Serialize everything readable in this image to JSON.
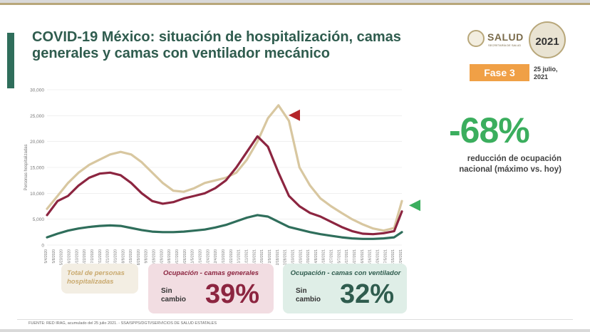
{
  "header": {
    "title": "COVID-19 México: situación de hospitalización, camas generales y camas con ventilador mecánico",
    "logo_text": "SALUD",
    "logo_subtext": "SECRETARÍA DE SALUD",
    "logo_year": "2021",
    "phase": "Fase 3",
    "date": "25 julio, 2021"
  },
  "kpi": {
    "value": "-68%",
    "description": "reducción de ocupación nacional (máximo vs. hoy)"
  },
  "cards": {
    "total": {
      "label": "Total de personas hospitalizadas"
    },
    "general": {
      "label": "Ocupación - camas generales",
      "status": "Sin cambio",
      "value": "39%"
    },
    "ventilator": {
      "label": "Ocupación - camas con ventilador",
      "status": "Sin cambio",
      "value": "32%"
    }
  },
  "footer": "FUENTE: RED IRAG, acumulado del 25 julio 2021. - SSA/SPPS/DGTI/SERVICIOS DE SALUD ESTATALES",
  "colors": {
    "total": "#d8c7a0",
    "general": "#8c2540",
    "ventilator": "#2f6e5b",
    "marker_peak": "#b5262b",
    "marker_today": "#3bae5e"
  },
  "chart_data": {
    "type": "line",
    "ylabel": "Personas hospitalizadas",
    "ylim": [
      0,
      30000
    ],
    "yticks": [
      "0",
      "5,000",
      "10,000",
      "15,000",
      "20,000",
      "25,000",
      "30,000"
    ],
    "x_tick_labels": [
      "5/4/2020",
      "5/8/2020",
      "5/23/2020",
      "6/2/2020",
      "6/13/2020",
      "6/22/2020",
      "7/2/2020",
      "7/11/2020",
      "7/21/2020",
      "7/31/2020",
      "8/9/2020",
      "8/19/2020",
      "8/29/2020",
      "9/8/2020",
      "9/19/2020",
      "9/29/2020",
      "10/8/2020",
      "10/17/2020",
      "10/26/2020",
      "11/5/2020",
      "11/14/2020",
      "11/24/2020",
      "12/4/2020",
      "12/13/2020",
      "12/22/2020",
      "1/1/2021",
      "1/11/2021",
      "1/20/2021",
      "1/30/2021",
      "2/9/2021",
      "2/18/2021",
      "2/28/2021",
      "3/10/2021",
      "3/20/2021",
      "3/30/2021",
      "4/8/2021",
      "4/18/2021",
      "4/27/2021",
      "5/7/2021",
      "5/17/2021",
      "5/27/2021",
      "6/6/2021",
      "6/16/2021",
      "6/26/2021",
      "7/5/2021",
      "7/15/2021",
      "7/24/2021"
    ],
    "x": [
      0,
      15,
      30,
      45,
      60,
      75,
      90,
      105,
      120,
      135,
      150,
      165,
      180,
      195,
      210,
      225,
      240,
      255,
      270,
      285,
      300,
      315,
      330,
      345,
      360,
      375,
      390,
      405,
      420,
      435,
      450,
      465,
      480,
      495,
      506
    ],
    "series": [
      {
        "key": "total",
        "values": [
          7000,
          9500,
          12000,
          14000,
          15500,
          16500,
          17500,
          18000,
          17500,
          16000,
          14000,
          12000,
          10500,
          10300,
          11000,
          12000,
          12500,
          13000,
          14000,
          16500,
          20000,
          24500,
          27000,
          24000,
          15000,
          11500,
          9000,
          7500,
          6200,
          5000,
          4000,
          3200,
          2800,
          3300,
          8500
        ]
      },
      {
        "key": "general",
        "values": [
          5800,
          8500,
          9500,
          11500,
          13000,
          13800,
          14000,
          13500,
          12000,
          10000,
          8500,
          8000,
          8300,
          9000,
          9500,
          10000,
          11000,
          12500,
          15000,
          18000,
          21000,
          19000,
          14000,
          9500,
          7500,
          6200,
          5500,
          4500,
          3500,
          2700,
          2200,
          2100,
          2300,
          2700,
          6500
        ]
      },
      {
        "key": "ventilator",
        "values": [
          1500,
          2200,
          2800,
          3200,
          3500,
          3700,
          3800,
          3700,
          3300,
          2900,
          2600,
          2500,
          2500,
          2600,
          2800,
          3000,
          3400,
          3900,
          4600,
          5300,
          5800,
          5500,
          4500,
          3500,
          3000,
          2500,
          2100,
          1800,
          1500,
          1300,
          1200,
          1200,
          1300,
          1500,
          2500
        ]
      }
    ]
  }
}
